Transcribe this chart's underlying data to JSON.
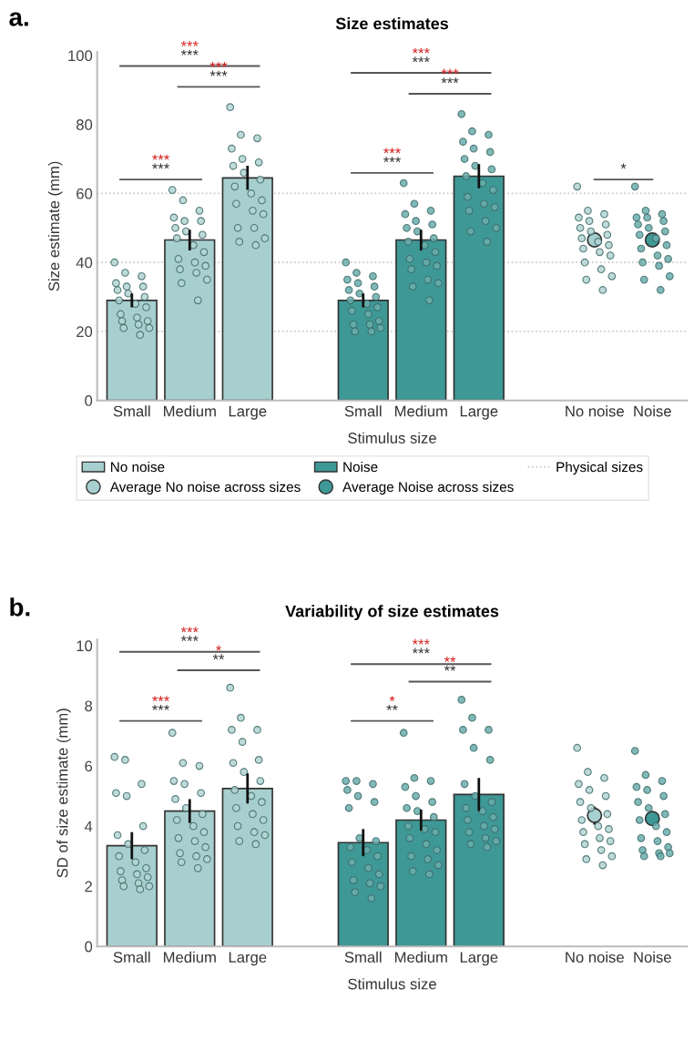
{
  "chart_data": [
    {
      "type": "bar",
      "title": "Size estimates",
      "xlabel": "Stimulus size",
      "ylabel": "Size estimate (mm)",
      "categories": [
        "Small",
        "Medium",
        "Large",
        null,
        "Small",
        "Medium",
        "Large",
        null,
        "No noise",
        "Noise"
      ],
      "ylim": [
        0,
        101
      ],
      "yticks": [
        0,
        20,
        40,
        60,
        80,
        100
      ],
      "grid": false,
      "legend": "bottom",
      "ref_lines": [
        {
          "axis": "y",
          "value": 20,
          "label": "Physical sizes",
          "color": "#c8c8c8",
          "line_style": "dotted"
        },
        {
          "axis": "y",
          "value": 40,
          "color": "#c8c8c8",
          "line_style": "dotted"
        },
        {
          "axis": "y",
          "value": 60,
          "color": "#c8c8c8",
          "line_style": "dotted"
        }
      ],
      "annotations": [
        "a.",
        "***",
        "***",
        "***",
        "***",
        "***",
        "***",
        "***",
        "***",
        "***",
        "***",
        "***",
        "***",
        "*"
      ],
      "series": [
        {
          "name": "No noise",
          "color": "#a8cfcf",
          "values": [
            29,
            46.5,
            64.5,
            null,
            null,
            null,
            null,
            null,
            null,
            null
          ],
          "errors": [
            2,
            3,
            3.5,
            null,
            null,
            null,
            null,
            null,
            null,
            null
          ]
        },
        {
          "name": "Noise",
          "color": "#3e9896",
          "values": [
            null,
            null,
            null,
            null,
            29,
            46.5,
            65,
            null,
            null,
            null
          ],
          "errors": [
            null,
            null,
            null,
            null,
            2,
            3,
            3.5,
            null,
            null,
            null
          ]
        },
        {
          "type": "scatter",
          "name": "Average No noise across sizes",
          "color": "#a8cfcf",
          "marker": "circle",
          "values": [
            null,
            null,
            null,
            null,
            null,
            null,
            null,
            null,
            46.5,
            null
          ],
          "errors": [
            null,
            null,
            null,
            null,
            null,
            null,
            null,
            null,
            2,
            null
          ]
        },
        {
          "type": "scatter",
          "name": "Average Noise across sizes",
          "color": "#3e9896",
          "marker": "circle",
          "values": [
            null,
            null,
            null,
            null,
            null,
            null,
            null,
            null,
            null,
            46.5
          ],
          "errors": [
            null,
            null,
            null,
            null,
            null,
            null,
            null,
            null,
            null,
            2
          ]
        },
        {
          "type": "scatter",
          "colors": [
            "#b3d3d2",
            "#b3d3d2",
            "#b3d3d2",
            null,
            "#6aaeac",
            "#6aaeac",
            "#6aaeac",
            null,
            "#b3d3d2",
            "#6aaeac"
          ],
          "values": [
            40,
            61,
            85,
            null,
            40,
            63,
            83,
            null,
            62,
            62
          ]
        },
        {
          "type": "scatter",
          "colors": [
            "#b3d3d2",
            "#b3d3d2",
            "#b3d3d2",
            null,
            "#6aaeac",
            "#6aaeac",
            "#6aaeac",
            null,
            "#b3d3d2",
            "#6aaeac"
          ],
          "values": [
            37,
            58,
            77,
            null,
            37,
            57,
            78,
            null,
            55,
            55
          ]
        },
        {
          "type": "scatter",
          "colors": [
            "#b3d3d2",
            "#b3d3d2",
            "#b3d3d2",
            null,
            "#6aaeac",
            "#6aaeac",
            "#6aaeac",
            null,
            "#b3d3d2",
            "#6aaeac"
          ],
          "values": [
            36,
            55,
            76,
            null,
            36,
            55,
            77,
            null,
            54,
            54
          ]
        },
        {
          "type": "scatter",
          "colors": [
            "#b3d3d2",
            "#b3d3d2",
            "#b3d3d2",
            null,
            "#6aaeac",
            "#6aaeac",
            "#6aaeac",
            null,
            "#b3d3d2",
            "#6aaeac"
          ],
          "values": [
            34,
            53,
            73,
            null,
            35,
            54,
            75,
            null,
            53,
            53
          ]
        },
        {
          "type": "scatter",
          "colors": [
            "#b3d3d2",
            "#b3d3d2",
            "#b3d3d2",
            null,
            "#6aaeac",
            "#6aaeac",
            "#6aaeac",
            null,
            "#b3d3d2",
            "#6aaeac"
          ],
          "values": [
            33,
            52,
            70,
            null,
            34,
            52,
            73,
            null,
            52,
            53
          ]
        },
        {
          "type": "scatter",
          "colors": [
            "#b3d3d2",
            "#b3d3d2",
            "#b3d3d2",
            null,
            "#6aaeac",
            "#6aaeac",
            "#6aaeac",
            null,
            "#b3d3d2",
            "#6aaeac"
          ],
          "values": [
            33,
            52,
            69,
            null,
            33,
            51,
            72,
            null,
            51,
            52
          ]
        },
        {
          "type": "scatter",
          "colors": [
            "#b3d3d2",
            "#b3d3d2",
            "#b3d3d2",
            null,
            "#6aaeac",
            "#6aaeac",
            "#6aaeac",
            null,
            "#b3d3d2",
            "#6aaeac"
          ],
          "values": [
            32,
            50,
            68,
            null,
            32,
            50,
            70,
            null,
            50,
            51
          ]
        },
        {
          "type": "scatter",
          "colors": [
            "#b3d3d2",
            "#b3d3d2",
            "#b3d3d2",
            null,
            "#6aaeac",
            "#6aaeac",
            "#6aaeac",
            null,
            "#b3d3d2",
            "#6aaeac"
          ],
          "values": [
            31,
            49,
            66,
            null,
            31,
            49,
            68,
            null,
            49,
            50
          ]
        },
        {
          "type": "scatter",
          "colors": [
            "#b3d3d2",
            "#b3d3d2",
            "#b3d3d2",
            null,
            "#6aaeac",
            "#6aaeac",
            "#6aaeac",
            null,
            "#b3d3d2",
            "#6aaeac"
          ],
          "values": [
            30,
            48,
            64,
            null,
            30,
            47,
            67,
            null,
            48,
            49
          ]
        },
        {
          "type": "scatter",
          "colors": [
            "#b3d3d2",
            "#b3d3d2",
            "#b3d3d2",
            null,
            "#6aaeac",
            "#6aaeac",
            "#6aaeac",
            null,
            "#b3d3d2",
            "#6aaeac"
          ],
          "values": [
            29,
            47,
            62,
            null,
            29,
            46,
            65,
            null,
            47,
            48
          ]
        },
        {
          "type": "scatter",
          "colors": [
            "#b3d3d2",
            "#b3d3d2",
            "#b3d3d2",
            null,
            "#6aaeac",
            "#6aaeac",
            "#6aaeac",
            null,
            "#b3d3d2",
            "#6aaeac"
          ],
          "values": [
            28,
            45,
            60,
            null,
            28,
            45,
            63,
            null,
            46,
            47
          ]
        },
        {
          "type": "scatter",
          "colors": [
            "#b3d3d2",
            "#b3d3d2",
            "#b3d3d2",
            null,
            "#6aaeac",
            "#6aaeac",
            "#6aaeac",
            null,
            "#b3d3d2",
            "#6aaeac"
          ],
          "values": [
            27,
            43,
            58,
            null,
            27,
            43,
            61,
            null,
            45,
            45
          ]
        },
        {
          "type": "scatter",
          "colors": [
            "#b3d3d2",
            "#b3d3d2",
            "#b3d3d2",
            null,
            "#6aaeac",
            "#6aaeac",
            "#6aaeac",
            null,
            "#b3d3d2",
            "#6aaeac"
          ],
          "values": [
            25,
            41,
            57,
            null,
            26,
            41,
            59,
            null,
            44,
            44
          ]
        },
        {
          "type": "scatter",
          "colors": [
            "#b3d3d2",
            "#b3d3d2",
            "#b3d3d2",
            null,
            "#6aaeac",
            "#6aaeac",
            "#6aaeac",
            null,
            "#b3d3d2",
            "#6aaeac"
          ],
          "values": [
            24,
            40,
            55,
            null,
            25,
            40,
            57,
            null,
            43,
            42
          ]
        },
        {
          "type": "scatter",
          "colors": [
            "#b3d3d2",
            "#b3d3d2",
            "#b3d3d2",
            null,
            "#6aaeac",
            "#6aaeac",
            "#6aaeac",
            null,
            "#b3d3d2",
            "#6aaeac"
          ],
          "values": [
            23,
            39,
            54,
            null,
            23,
            39,
            56,
            null,
            42,
            41
          ]
        },
        {
          "type": "scatter",
          "colors": [
            "#b3d3d2",
            "#b3d3d2",
            "#b3d3d2",
            null,
            "#6aaeac",
            "#6aaeac",
            "#6aaeac",
            null,
            "#b3d3d2",
            "#6aaeac"
          ],
          "values": [
            23,
            38,
            50,
            null,
            22,
            38,
            55,
            null,
            40,
            40
          ]
        },
        {
          "type": "scatter",
          "colors": [
            "#b3d3d2",
            "#b3d3d2",
            "#b3d3d2",
            null,
            "#6aaeac",
            "#6aaeac",
            "#6aaeac",
            null,
            "#b3d3d2",
            "#6aaeac"
          ],
          "values": [
            22,
            37,
            50,
            null,
            22,
            35,
            52,
            null,
            38,
            39
          ]
        },
        {
          "type": "scatter",
          "colors": [
            "#b3d3d2",
            "#b3d3d2",
            "#b3d3d2",
            null,
            "#6aaeac",
            "#6aaeac",
            "#6aaeac",
            null,
            "#b3d3d2",
            "#6aaeac"
          ],
          "values": [
            21,
            35,
            47,
            null,
            21,
            34,
            50,
            null,
            36,
            36
          ]
        },
        {
          "type": "scatter",
          "colors": [
            "#b3d3d2",
            "#b3d3d2",
            "#b3d3d2",
            null,
            "#6aaeac",
            "#6aaeac",
            "#6aaeac",
            null,
            "#b3d3d2",
            "#6aaeac"
          ],
          "values": [
            21,
            34,
            46,
            null,
            20,
            33,
            49,
            null,
            35,
            35
          ]
        },
        {
          "type": "scatter",
          "colors": [
            "#b3d3d2",
            "#b3d3d2",
            "#b3d3d2",
            null,
            "#6aaeac",
            "#6aaeac",
            "#6aaeac",
            null,
            "#b3d3d2",
            "#6aaeac"
          ],
          "values": [
            19,
            29,
            45,
            null,
            20,
            29,
            46,
            null,
            32,
            32
          ]
        }
      ]
    },
    {
      "type": "bar",
      "title": "Variability of size estimates",
      "xlabel": "Stimulus size",
      "ylabel": "SD of size estimate (mm)",
      "categories": [
        "Small",
        "Medium",
        "Large",
        null,
        "Small",
        "Medium",
        "Large",
        null,
        "No noise",
        "Noise"
      ],
      "ylim": [
        0,
        10.2
      ],
      "yticks": [
        0,
        2,
        4,
        6,
        8,
        10
      ],
      "grid": false,
      "legend": false,
      "annotations": [
        "b.",
        "***",
        "***",
        "*",
        "**",
        "***",
        "***",
        "***",
        "***",
        "**",
        "**",
        "*",
        "**"
      ],
      "series": [
        {
          "color": "#a8cfcf",
          "values": [
            3.35,
            4.5,
            5.25,
            null,
            null,
            null,
            null,
            null,
            null,
            null
          ],
          "errors": [
            0.45,
            0.4,
            0.5,
            null,
            null,
            null,
            null,
            null,
            null,
            null
          ]
        },
        {
          "color": "#3e9896",
          "values": [
            null,
            null,
            null,
            null,
            3.45,
            4.2,
            5.05,
            null,
            null,
            null
          ],
          "errors": [
            null,
            null,
            null,
            null,
            0.45,
            0.35,
            0.55,
            null,
            null,
            null
          ]
        },
        {
          "type": "scatter",
          "color": "#a8cfcf",
          "marker": "circle",
          "values": [
            null,
            null,
            null,
            null,
            null,
            null,
            null,
            null,
            4.35,
            null
          ],
          "errors": [
            null,
            null,
            null,
            null,
            null,
            null,
            null,
            null,
            0.3,
            null
          ]
        },
        {
          "type": "scatter",
          "color": "#3e9896",
          "marker": "circle",
          "values": [
            null,
            null,
            null,
            null,
            null,
            null,
            null,
            null,
            null,
            4.25
          ],
          "errors": [
            null,
            null,
            null,
            null,
            null,
            null,
            null,
            null,
            null,
            0.25
          ]
        },
        {
          "type": "scatter",
          "colors": [
            "#b3d3d2",
            "#b3d3d2",
            "#b3d3d2",
            null,
            "#6aaeac",
            "#6aaeac",
            "#6aaeac",
            null,
            "#b3d3d2",
            "#6aaeac"
          ],
          "values": [
            6.3,
            7.1,
            8.6,
            null,
            5.5,
            7.1,
            8.2,
            null,
            6.6,
            6.5
          ]
        },
        {
          "type": "scatter",
          "colors": [
            "#b3d3d2",
            "#b3d3d2",
            "#b3d3d2",
            null,
            "#6aaeac",
            "#6aaeac",
            "#6aaeac",
            null,
            "#b3d3d2",
            "#6aaeac"
          ],
          "values": [
            6.2,
            6.1,
            7.6,
            null,
            5.5,
            5.6,
            7.6,
            null,
            5.8,
            5.7
          ]
        },
        {
          "type": "scatter",
          "colors": [
            "#b3d3d2",
            "#b3d3d2",
            "#b3d3d2",
            null,
            "#6aaeac",
            "#6aaeac",
            "#6aaeac",
            null,
            "#b3d3d2",
            "#6aaeac"
          ],
          "values": [
            5.4,
            6.0,
            7.2,
            null,
            5.4,
            5.5,
            7.2,
            null,
            5.6,
            5.5
          ]
        },
        {
          "type": "scatter",
          "colors": [
            "#b3d3d2",
            "#b3d3d2",
            "#b3d3d2",
            null,
            "#6aaeac",
            "#6aaeac",
            "#6aaeac",
            null,
            "#b3d3d2",
            "#6aaeac"
          ],
          "values": [
            5.1,
            5.5,
            7.2,
            null,
            5.2,
            5.3,
            7.2,
            null,
            5.4,
            5.3
          ]
        },
        {
          "type": "scatter",
          "colors": [
            "#b3d3d2",
            "#b3d3d2",
            "#b3d3d2",
            null,
            "#6aaeac",
            "#6aaeac",
            "#6aaeac",
            null,
            "#b3d3d2",
            "#6aaeac"
          ],
          "values": [
            5.0,
            5.4,
            6.8,
            null,
            5.0,
            5.0,
            6.6,
            null,
            5.2,
            5.2
          ]
        },
        {
          "type": "scatter",
          "colors": [
            "#b3d3d2",
            "#b3d3d2",
            "#b3d3d2",
            null,
            "#6aaeac",
            "#6aaeac",
            "#6aaeac",
            null,
            "#b3d3d2",
            "#6aaeac"
          ],
          "values": [
            4.0,
            5.1,
            6.2,
            null,
            4.8,
            4.8,
            6.2,
            null,
            5.0,
            5.0
          ]
        },
        {
          "type": "scatter",
          "colors": [
            "#b3d3d2",
            "#b3d3d2",
            "#b3d3d2",
            null,
            "#6aaeac",
            "#6aaeac",
            "#6aaeac",
            null,
            "#b3d3d2",
            "#6aaeac"
          ],
          "values": [
            3.7,
            4.9,
            6.1,
            null,
            4.6,
            4.6,
            5.4,
            null,
            4.8,
            4.8
          ]
        },
        {
          "type": "scatter",
          "colors": [
            "#b3d3d2",
            "#b3d3d2",
            "#b3d3d2",
            null,
            "#6aaeac",
            "#6aaeac",
            "#6aaeac",
            null,
            "#b3d3d2",
            "#6aaeac"
          ],
          "values": [
            3.4,
            4.6,
            5.8,
            null,
            3.6,
            4.5,
            5.0,
            null,
            4.6,
            4.6
          ]
        },
        {
          "type": "scatter",
          "colors": [
            "#b3d3d2",
            "#b3d3d2",
            "#b3d3d2",
            null,
            "#6aaeac",
            "#6aaeac",
            "#6aaeac",
            null,
            "#b3d3d2",
            "#6aaeac"
          ],
          "values": [
            3.2,
            4.4,
            5.5,
            null,
            3.5,
            4.3,
            4.8,
            null,
            4.4,
            4.4
          ]
        },
        {
          "type": "scatter",
          "colors": [
            "#b3d3d2",
            "#b3d3d2",
            "#b3d3d2",
            null,
            "#6aaeac",
            "#6aaeac",
            "#6aaeac",
            null,
            "#b3d3d2",
            "#6aaeac"
          ],
          "values": [
            3.0,
            4.2,
            5.2,
            null,
            3.3,
            4.0,
            4.6,
            null,
            4.2,
            4.2
          ]
        },
        {
          "type": "scatter",
          "colors": [
            "#b3d3d2",
            "#b3d3d2",
            "#b3d3d2",
            null,
            "#6aaeac",
            "#6aaeac",
            "#6aaeac",
            null,
            "#b3d3d2",
            "#6aaeac"
          ],
          "values": [
            2.8,
            4.0,
            5.0,
            null,
            3.2,
            3.9,
            4.5,
            null,
            4.0,
            4.0
          ]
        },
        {
          "type": "scatter",
          "colors": [
            "#b3d3d2",
            "#b3d3d2",
            "#b3d3d2",
            null,
            "#6aaeac",
            "#6aaeac",
            "#6aaeac",
            null,
            "#b3d3d2",
            "#6aaeac"
          ],
          "values": [
            2.6,
            3.8,
            4.8,
            null,
            3.0,
            3.8,
            4.3,
            null,
            3.9,
            3.8
          ]
        },
        {
          "type": "scatter",
          "colors": [
            "#b3d3d2",
            "#b3d3d2",
            "#b3d3d2",
            null,
            "#6aaeac",
            "#6aaeac",
            "#6aaeac",
            null,
            "#b3d3d2",
            "#6aaeac"
          ],
          "values": [
            2.5,
            3.6,
            4.6,
            null,
            2.8,
            3.6,
            4.2,
            null,
            3.8,
            3.6
          ]
        },
        {
          "type": "scatter",
          "colors": [
            "#b3d3d2",
            "#b3d3d2",
            "#b3d3d2",
            null,
            "#6aaeac",
            "#6aaeac",
            "#6aaeac",
            null,
            "#b3d3d2",
            "#6aaeac"
          ],
          "values": [
            2.4,
            3.5,
            4.4,
            null,
            2.6,
            3.4,
            4.0,
            null,
            3.6,
            3.5
          ]
        },
        {
          "type": "scatter",
          "colors": [
            "#b3d3d2",
            "#b3d3d2",
            "#b3d3d2",
            null,
            "#6aaeac",
            "#6aaeac",
            "#6aaeac",
            null,
            "#b3d3d2",
            "#6aaeac"
          ],
          "values": [
            2.3,
            3.3,
            4.2,
            null,
            2.4,
            3.2,
            3.9,
            null,
            3.5,
            3.3
          ]
        },
        {
          "type": "scatter",
          "colors": [
            "#b3d3d2",
            "#b3d3d2",
            "#b3d3d2",
            null,
            "#6aaeac",
            "#6aaeac",
            "#6aaeac",
            null,
            "#b3d3d2",
            "#6aaeac"
          ],
          "values": [
            2.2,
            3.1,
            4.0,
            null,
            2.2,
            3.0,
            3.8,
            null,
            3.4,
            3.2
          ]
        },
        {
          "type": "scatter",
          "colors": [
            "#b3d3d2",
            "#b3d3d2",
            "#b3d3d2",
            null,
            "#6aaeac",
            "#6aaeac",
            "#6aaeac",
            null,
            "#b3d3d2",
            "#6aaeac"
          ],
          "values": [
            2.1,
            3.0,
            3.8,
            null,
            2.1,
            2.9,
            3.6,
            null,
            3.2,
            3.1
          ]
        },
        {
          "type": "scatter",
          "colors": [
            "#b3d3d2",
            "#b3d3d2",
            "#b3d3d2",
            null,
            "#6aaeac",
            "#6aaeac",
            "#6aaeac",
            null,
            "#b3d3d2",
            "#6aaeac"
          ],
          "values": [
            2.0,
            2.9,
            3.7,
            null,
            2.0,
            2.7,
            3.5,
            null,
            3.0,
            3.1
          ]
        },
        {
          "type": "scatter",
          "colors": [
            "#b3d3d2",
            "#b3d3d2",
            "#b3d3d2",
            null,
            "#6aaeac",
            "#6aaeac",
            "#6aaeac",
            null,
            "#b3d3d2",
            "#6aaeac"
          ],
          "values": [
            2.0,
            2.8,
            3.5,
            null,
            1.8,
            2.5,
            3.4,
            null,
            2.9,
            3.0
          ]
        },
        {
          "type": "scatter",
          "colors": [
            "#b3d3d2",
            "#b3d3d2",
            "#b3d3d2",
            null,
            "#6aaeac",
            "#6aaeac",
            "#6aaeac",
            null,
            "#b3d3d2",
            "#6aaeac"
          ],
          "values": [
            1.9,
            2.6,
            3.4,
            null,
            1.6,
            2.4,
            3.3,
            null,
            2.7,
            3.0
          ]
        }
      ]
    }
  ]
}
